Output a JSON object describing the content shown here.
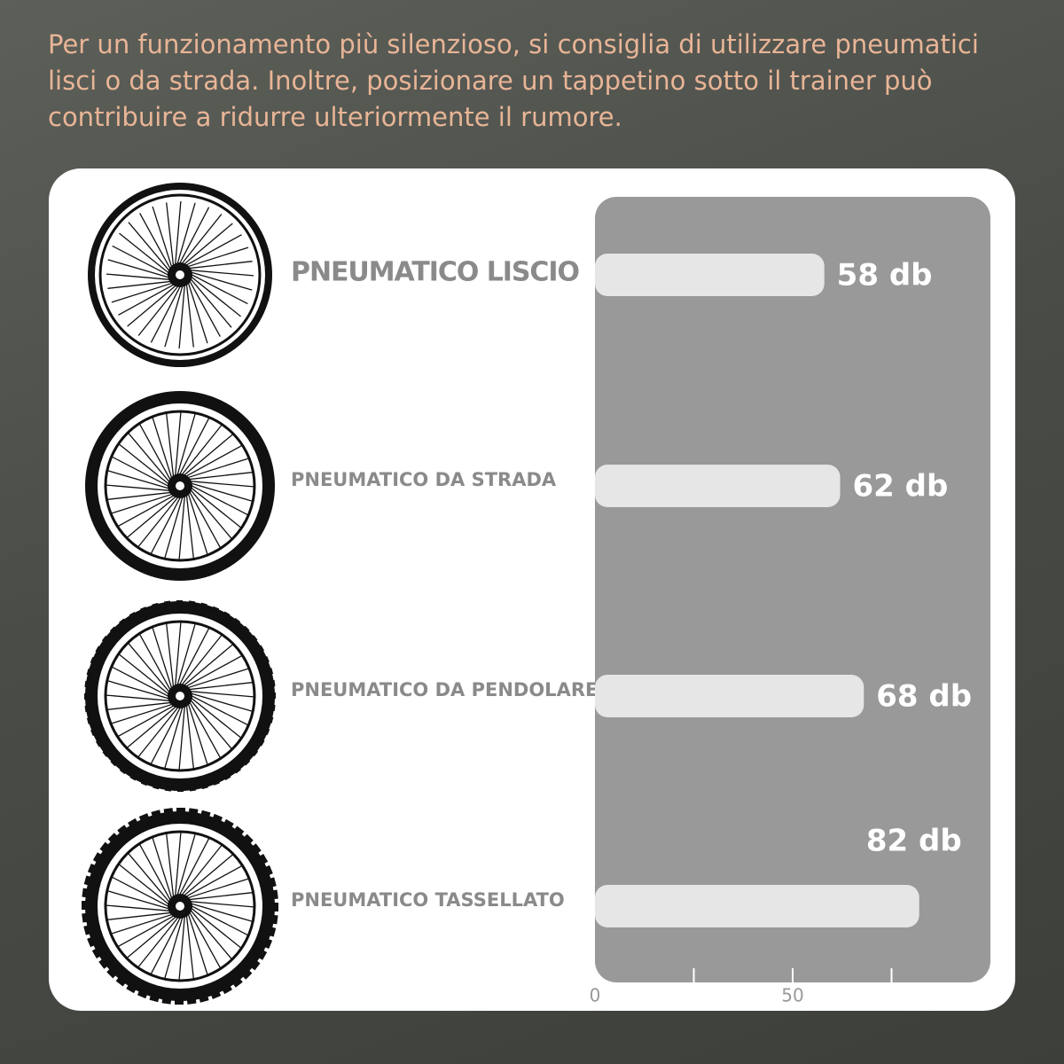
{
  "intro": "Per un funzionamento più silenzioso, si consiglia di utilizzare pneumatici lisci o da strada. Inoltre, posizionare un tappetino sotto il trainer può contribuire a ridurre ulteriormente il rumore.",
  "chart_data": {
    "type": "bar",
    "orientation": "horizontal",
    "categories": [
      "PNEUMATICO LISCIO",
      "PNEUMATICO DA STRADA",
      "PNEUMATICO DA PENDOLARE",
      "PNEUMATICO TASSELLATO"
    ],
    "values": [
      58,
      62,
      68,
      82
    ],
    "value_labels": [
      "58 db",
      "62 db",
      "68 db",
      "82 db"
    ],
    "color": "#e6e6e6",
    "xlim": [
      0,
      100
    ],
    "xticks": [
      0,
      50
    ],
    "minor_xticks": [
      25,
      75
    ]
  }
}
